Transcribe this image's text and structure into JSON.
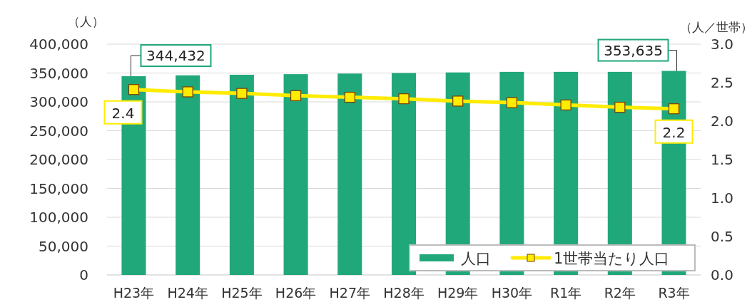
{
  "chart_data": {
    "type": "bar",
    "categories": [
      "H23年",
      "H24年",
      "H25年",
      "H26年",
      "H27年",
      "H28年",
      "H29年",
      "H30年",
      "R1年",
      "R2年",
      "R3年"
    ],
    "ylabel": "（人）",
    "y2label": "（人／世帯）",
    "series": [
      {
        "name": "人口",
        "color": "#21a87a",
        "values": [
          344432,
          346000,
          347000,
          348000,
          349000,
          350000,
          351000,
          352000,
          352000,
          352000,
          353635
        ],
        "value_labels": [
          "344,432",
          null,
          null,
          null,
          null,
          null,
          null,
          null,
          null,
          null,
          "353,635"
        ]
      },
      {
        "name": "1世帯当たり人口",
        "type": "line",
        "axis": "y2",
        "color": "#ffec00",
        "marker": "square",
        "values": [
          2.41,
          2.38,
          2.36,
          2.33,
          2.31,
          2.29,
          2.26,
          2.24,
          2.21,
          2.18,
          2.16
        ],
        "value_labels": [
          "2.4",
          null,
          null,
          null,
          null,
          null,
          null,
          null,
          null,
          null,
          "2.2"
        ]
      }
    ],
    "ylim": [
      0,
      400000
    ],
    "yticks": [
      {
        "value": 0,
        "label": "0"
      },
      {
        "value": 50000,
        "label": "50,000"
      },
      {
        "value": 100000,
        "label": "100,000"
      },
      {
        "value": 150000,
        "label": "150,000"
      },
      {
        "value": 200000,
        "label": "200,000"
      },
      {
        "value": 250000,
        "label": "250,000"
      },
      {
        "value": 300000,
        "label": "300,000"
      },
      {
        "value": 350000,
        "label": "350,000"
      },
      {
        "value": 400000,
        "label": "400,000"
      }
    ],
    "y2lim": [
      0,
      3
    ],
    "y2ticks": [
      {
        "value": 0,
        "label": "0.0"
      },
      {
        "value": 0.5,
        "label": "0.5"
      },
      {
        "value": 1,
        "label": "1.0"
      },
      {
        "value": 1.5,
        "label": "1.5"
      },
      {
        "value": 2,
        "label": "2.0"
      },
      {
        "value": 2.5,
        "label": "2.5"
      },
      {
        "value": 3,
        "label": "3.0"
      }
    ],
    "grid": "y",
    "legend": "bottom right"
  }
}
